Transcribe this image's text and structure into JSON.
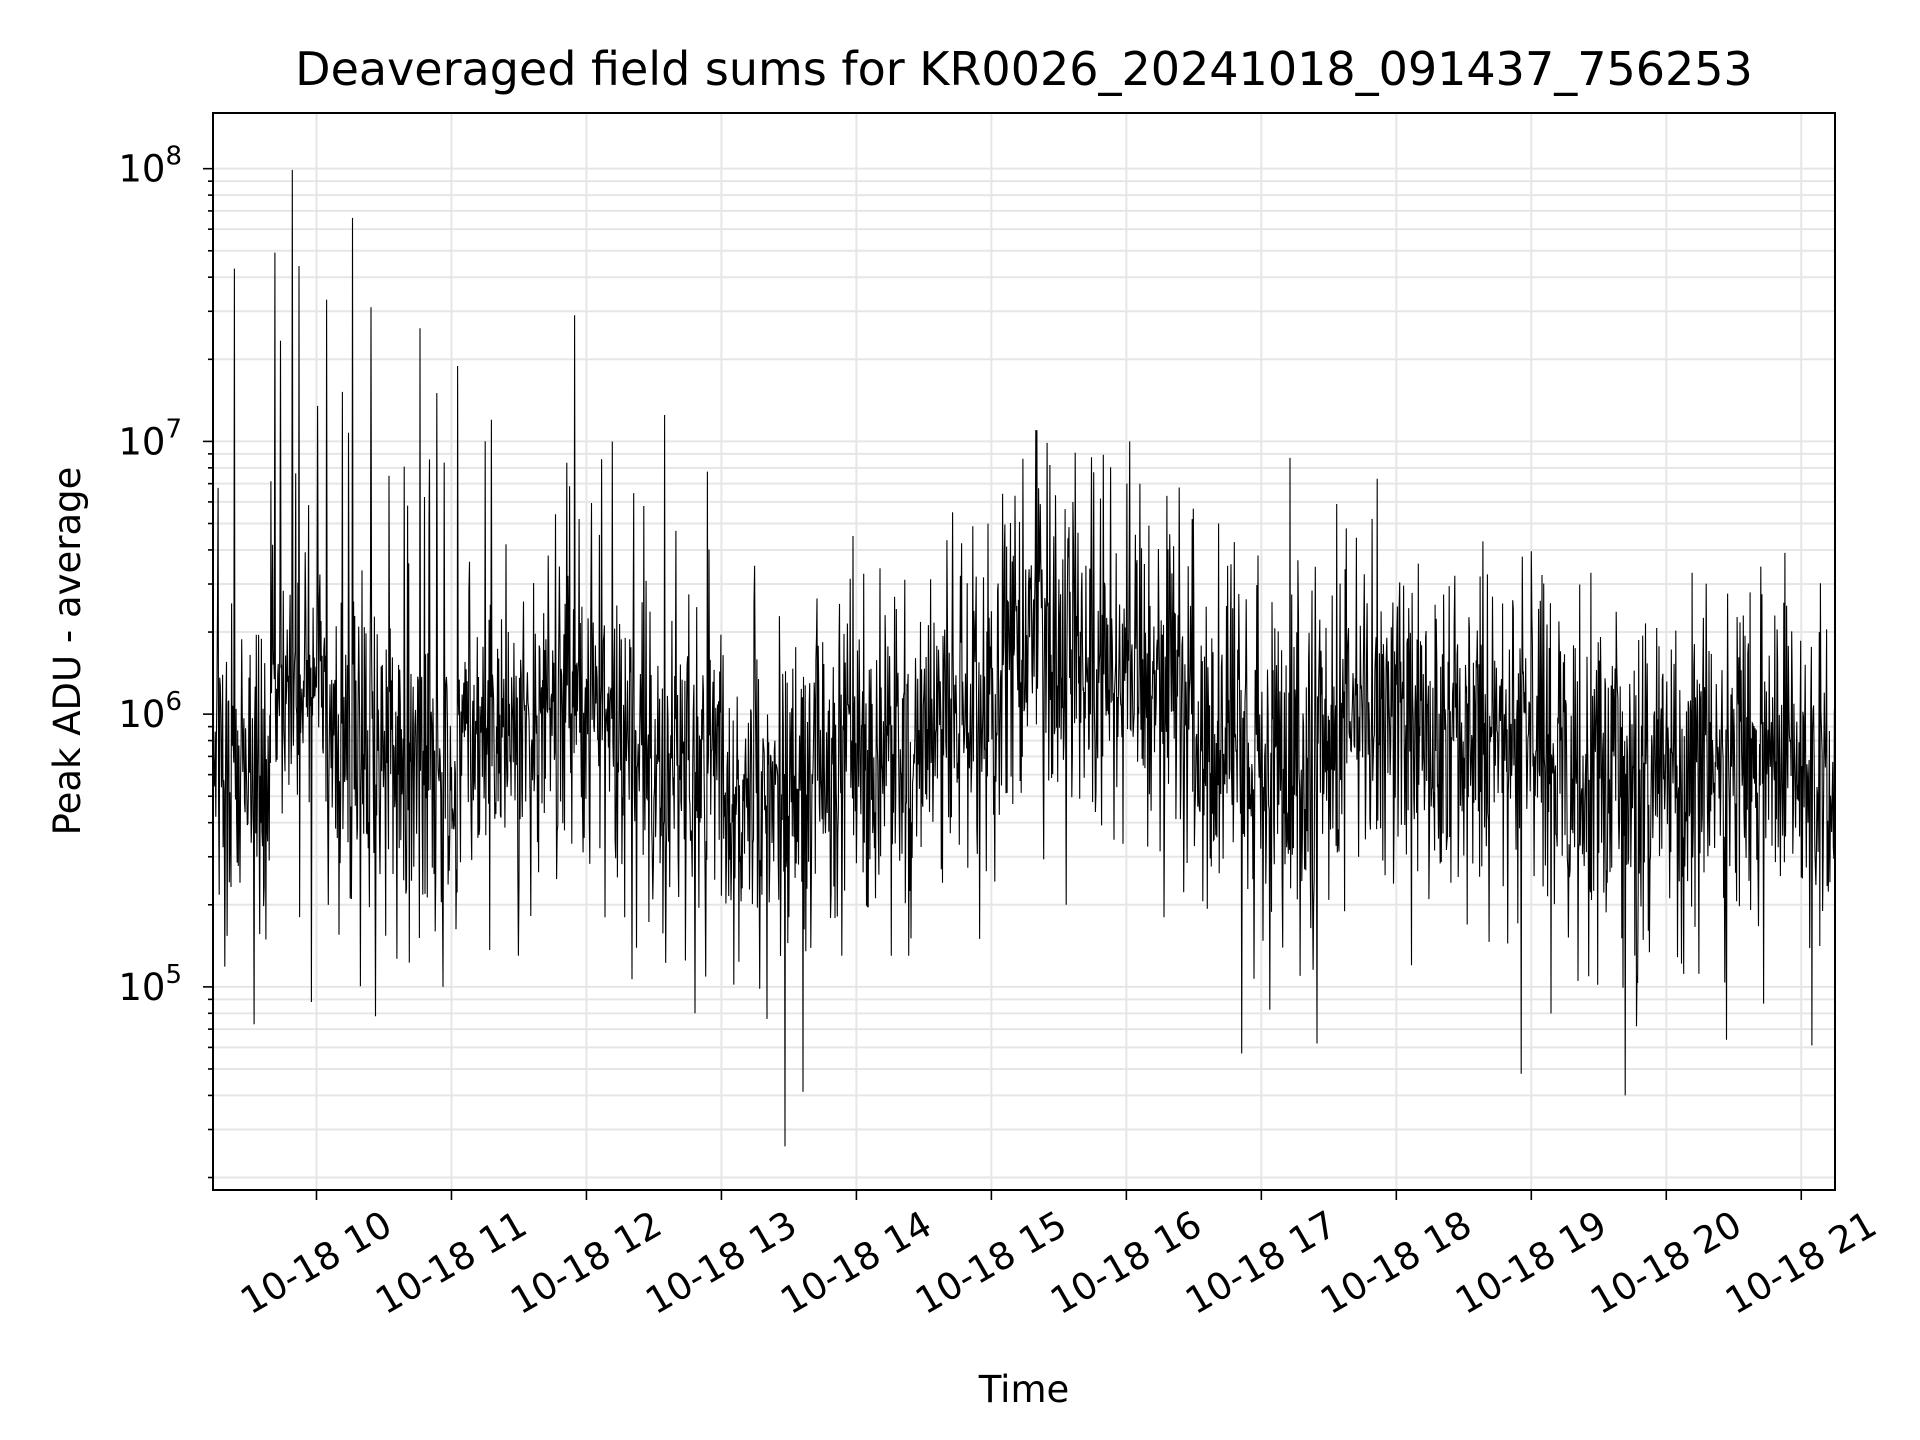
{
  "chart_data": {
    "type": "line",
    "title": "Deaveraged field sums for KR0026_20241018_091437_756253",
    "xlabel": "Time",
    "ylabel": "Peak ADU - average",
    "yscale": "log",
    "ylim": [
      18000,
      160000000
    ],
    "xlim": [
      "2024-10-18 09:14",
      "2024-10-18 21:15"
    ],
    "grid": "on",
    "line_color": "#000000",
    "x_ticks": [
      "10-18 10",
      "10-18 11",
      "10-18 12",
      "10-18 13",
      "10-18 14",
      "10-18 15",
      "10-18 16",
      "10-18 17",
      "10-18 18",
      "10-18 19",
      "10-18 20",
      "10-18 21"
    ],
    "y_ticks": [
      {
        "base": "10",
        "exp": "5",
        "value": 100000
      },
      {
        "base": "10",
        "exp": "6",
        "value": 1000000
      },
      {
        "base": "10",
        "exp": "7",
        "value": 10000000
      },
      {
        "base": "10",
        "exp": "8",
        "value": 100000000
      }
    ],
    "series": [
      {
        "values_note": "per-segment typical level and spike extremes read from figure",
        "segments": [
          {
            "t0": "2024-10-18 09:14",
            "t1": "2024-10-18 09:40",
            "level": 700000,
            "max": 43000000,
            "min": 73000
          },
          {
            "t0": "2024-10-18 09:40",
            "t1": "2024-10-18 10:05",
            "level": 1400000,
            "max": 99000000,
            "min": 88000
          },
          {
            "t0": "2024-10-18 10:05",
            "t1": "2024-10-18 10:35",
            "level": 800000,
            "max": 66000000,
            "min": 78000
          },
          {
            "t0": "2024-10-18 10:35",
            "t1": "2024-10-18 11:05",
            "level": 650000,
            "max": 26000000,
            "min": 100000
          },
          {
            "t0": "2024-10-18 11:05",
            "t1": "2024-10-18 11:40",
            "level": 850000,
            "max": 12000000,
            "min": 130000
          },
          {
            "t0": "2024-10-18 11:40",
            "t1": "2024-10-18 12:20",
            "level": 1100000,
            "max": 29000000,
            "min": 180000
          },
          {
            "t0": "2024-10-18 12:20",
            "t1": "2024-10-18 13:00",
            "level": 600000,
            "max": 12500000,
            "min": 80000
          },
          {
            "t0": "2024-10-18 13:00",
            "t1": "2024-10-18 13:40",
            "level": 500000,
            "max": 3500000,
            "min": 26000
          },
          {
            "t0": "2024-10-18 13:40",
            "t1": "2024-10-18 14:30",
            "level": 700000,
            "max": 4500000,
            "min": 130000
          },
          {
            "t0": "2024-10-18 14:30",
            "t1": "2024-10-18 15:05",
            "level": 1000000,
            "max": 5500000,
            "min": 150000
          },
          {
            "t0": "2024-10-18 15:05",
            "t1": "2024-10-18 15:45",
            "level": 2000000,
            "max": 11000000,
            "min": 200000
          },
          {
            "t0": "2024-10-18 15:45",
            "t1": "2024-10-18 16:30",
            "level": 1300000,
            "max": 10000000,
            "min": 180000
          },
          {
            "t0": "2024-10-18 16:30",
            "t1": "2024-10-18 17:00",
            "level": 700000,
            "max": 5000000,
            "min": 57000
          },
          {
            "t0": "2024-10-18 17:00",
            "t1": "2024-10-18 17:35",
            "level": 600000,
            "max": 8700000,
            "min": 62000
          },
          {
            "t0": "2024-10-18 17:35",
            "t1": "2024-10-18 18:20",
            "level": 1000000,
            "max": 7300000,
            "min": 120000
          },
          {
            "t0": "2024-10-18 18:20",
            "t1": "2024-10-18 19:10",
            "level": 800000,
            "max": 4300000,
            "min": 48000
          },
          {
            "t0": "2024-10-18 19:10",
            "t1": "2024-10-18 19:55",
            "level": 550000,
            "max": 3300000,
            "min": 40000
          },
          {
            "t0": "2024-10-18 19:55",
            "t1": "2024-10-18 20:40",
            "level": 650000,
            "max": 3300000,
            "min": 64000
          },
          {
            "t0": "2024-10-18 20:40",
            "t1": "2024-10-18 21:15",
            "level": 600000,
            "max": 3900000,
            "min": 61000
          }
        ]
      }
    ]
  }
}
